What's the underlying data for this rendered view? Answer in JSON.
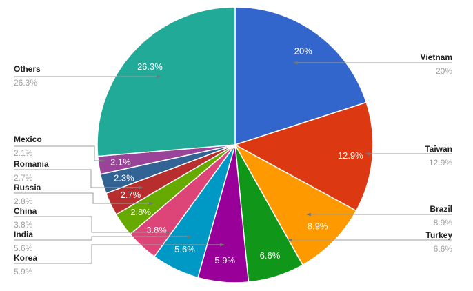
{
  "chart_data": {
    "type": "pie",
    "title": "",
    "unit": "%",
    "direction": "clockwise",
    "start_angle_deg": 0,
    "legend_position": "external-callouts",
    "slices": [
      {
        "label": "Vietnam",
        "value": 20,
        "pct_label": "20%",
        "color": "#3366CC",
        "callout": true,
        "side": "right"
      },
      {
        "label": "Taiwan",
        "value": 12.9,
        "pct_label": "12.9%",
        "color": "#DC3912",
        "callout": true,
        "side": "right"
      },
      {
        "label": "Brazil",
        "value": 8.9,
        "pct_label": "8.9%",
        "color": "#FF9900",
        "callout": true,
        "side": "right"
      },
      {
        "label": "Turkey",
        "value": 6.6,
        "pct_label": "6.6%",
        "color": "#109618",
        "callout": true,
        "side": "right"
      },
      {
        "label": "Korea",
        "value": 5.9,
        "pct_label": "5.9%",
        "color": "#990099",
        "callout": true,
        "side": "left"
      },
      {
        "label": "India",
        "value": 5.6,
        "pct_label": "5.6%",
        "color": "#0099C6",
        "callout": true,
        "side": "left"
      },
      {
        "label": "China",
        "value": 3.8,
        "pct_label": "3.8%",
        "color": "#DD4477",
        "callout": true,
        "side": "left"
      },
      {
        "label": "Russia",
        "value": 2.8,
        "pct_label": "2.8%",
        "color": "#66AA00",
        "callout": true,
        "side": "left"
      },
      {
        "label": "Romania",
        "value": 2.7,
        "pct_label": "2.7%",
        "color": "#B82E2E",
        "callout": true,
        "side": "left"
      },
      {
        "label": "",
        "value": 2.3,
        "pct_label": "2.3%",
        "color": "#316395",
        "callout": false,
        "side": "left"
      },
      {
        "label": "Mexico",
        "value": 2.1,
        "pct_label": "2.1%",
        "color": "#994499",
        "callout": true,
        "side": "left"
      },
      {
        "label": "Others",
        "value": 26.3,
        "pct_label": "26.3%",
        "color": "#22AA99",
        "callout": true,
        "side": "left"
      }
    ]
  },
  "style": {
    "background": "#ffffff",
    "slice_border": "#ffffff",
    "internal_label_color": "#ffffff",
    "callout_name_color": "#212121",
    "callout_value_color": "#9e9e9e",
    "leader_line_color": "#9e9e9e",
    "leader_arrow_color": "#757575"
  }
}
